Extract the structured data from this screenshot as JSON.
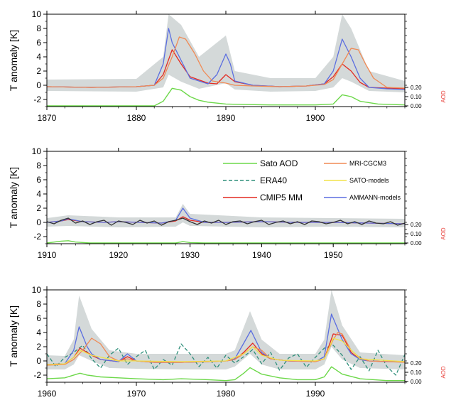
{
  "chart_data": [
    {
      "type": "line",
      "ylabel": "T anomaly [K]",
      "xlim": [
        1870,
        1910
      ],
      "ylim": [
        -3,
        10
      ],
      "xticks": [
        1870,
        1880,
        1890,
        1900
      ],
      "yticks": [
        -2,
        0,
        2,
        4,
        6,
        8,
        10
      ],
      "right_axis": {
        "label": "AOD",
        "ticks": [
          "0.00",
          "0.10",
          "0.20"
        ],
        "color": "#e8403a"
      },
      "legend": null,
      "series": [
        {
          "key": "cmip5",
          "color": "#e32b22",
          "x": [
            1870,
            1875,
            1880,
            1882,
            1883,
            1884,
            1885,
            1886,
            1888,
            1889,
            1890,
            1891,
            1893,
            1896,
            1899,
            1901,
            1902,
            1903,
            1904,
            1905,
            1906,
            1908,
            1910
          ],
          "y": [
            -0.2,
            -0.3,
            -0.2,
            0.0,
            1.5,
            5.0,
            3.0,
            1.2,
            0.3,
            0.2,
            1.5,
            0.5,
            0.0,
            -0.2,
            -0.1,
            0.2,
            1.2,
            3.0,
            2.0,
            0.4,
            -0.3,
            -0.4,
            -0.5
          ]
        },
        {
          "key": "ammann",
          "color": "#5b6ee0",
          "x": [
            1870,
            1875,
            1880,
            1882,
            1883,
            1883.6,
            1884,
            1885,
            1886,
            1888,
            1889,
            1890,
            1890.5,
            1891,
            1893,
            1896,
            1899,
            1901,
            1902,
            1903,
            1904,
            1905,
            1906,
            1908,
            1910
          ],
          "y": [
            -0.2,
            -0.3,
            -0.2,
            0.0,
            3.0,
            8.0,
            6.0,
            3.5,
            1.0,
            0.2,
            1.5,
            4.4,
            3.0,
            0.6,
            0.0,
            -0.2,
            -0.1,
            0.2,
            2.0,
            6.5,
            4.0,
            1.0,
            -0.3,
            -0.5,
            -0.6
          ]
        },
        {
          "key": "mri",
          "color": "#f08a55",
          "x": [
            1870,
            1875,
            1880,
            1882,
            1883,
            1884,
            1884.8,
            1885.5,
            1886.5,
            1887.5,
            1888.5,
            1890,
            1891,
            1893,
            1896,
            1899,
            1901,
            1902,
            1903,
            1904,
            1904.8,
            1905.6,
            1906.5,
            1908,
            1910
          ],
          "y": [
            -0.2,
            -0.3,
            -0.2,
            0.0,
            1.0,
            4.0,
            6.8,
            6.5,
            4.5,
            2.0,
            0.6,
            0.3,
            0.0,
            -0.1,
            -0.2,
            -0.1,
            0.1,
            0.8,
            3.0,
            5.2,
            5.0,
            3.0,
            1.0,
            -0.3,
            -0.4
          ]
        },
        {
          "key": "aod",
          "color": "#6dd84a",
          "x": [
            1870,
            1882,
            1883,
            1884,
            1885,
            1886,
            1887,
            1888,
            1890,
            1892,
            1895,
            1900,
            1902,
            1903,
            1904,
            1905,
            1907,
            1910
          ],
          "y": [
            0.0,
            0.0,
            0.05,
            0.19,
            0.17,
            0.1,
            0.06,
            0.04,
            0.02,
            0.015,
            0.01,
            0.01,
            0.02,
            0.12,
            0.1,
            0.05,
            0.02,
            0.01
          ]
        }
      ],
      "spread": {
        "color": "#c9d0cf",
        "x": [
          1870,
          1880,
          1883,
          1883.6,
          1885,
          1887,
          1890,
          1891,
          1895,
          1900,
          1902,
          1903,
          1904,
          1906,
          1910
        ],
        "upper": [
          0.8,
          0.9,
          4,
          10,
          8.5,
          4,
          7,
          2,
          1.0,
          1.0,
          4,
          10,
          8,
          2,
          0.6
        ],
        "lower": [
          -0.8,
          -0.9,
          -0.3,
          1.5,
          0.5,
          -0.5,
          0.3,
          -0.6,
          -0.9,
          -0.8,
          -0.3,
          1.0,
          0.5,
          -0.8,
          -1.0
        ]
      }
    },
    {
      "type": "line",
      "ylabel": "T anomaly [K]",
      "xlim": [
        1910,
        1960
      ],
      "ylim": [
        -3,
        10
      ],
      "xticks": [
        1910,
        1920,
        1930,
        1940,
        1950
      ],
      "yticks": [
        -2,
        0,
        2,
        4,
        6,
        8,
        10
      ],
      "right_axis": {
        "label": "AOD",
        "ticks": [
          "0.00",
          "0.10",
          "0.20"
        ],
        "color": "#e8403a"
      },
      "legend": {
        "placement": "top-right",
        "entries": [
          {
            "key": "aod",
            "label": "Sato AOD",
            "color": "#6dd84a",
            "dash": false
          },
          {
            "key": "era40",
            "label": "ERA40",
            "color": "#2f8f7a",
            "dash": true
          },
          {
            "key": "cmip5",
            "label": "CMIP5 MM",
            "color": "#e32b22",
            "dash": false
          },
          {
            "key": "mri",
            "label": "MRI-CGCM3",
            "color": "#f08a55",
            "dash": false
          },
          {
            "key": "sato",
            "label": "SATO-models",
            "color": "#f2e34a",
            "dash": false
          },
          {
            "key": "ammann",
            "label": "AMMANN-models",
            "color": "#5b6ee0",
            "dash": false
          }
        ]
      },
      "series": [
        {
          "key": "cmip5",
          "color": "#e32b22",
          "x": [
            1910,
            1912,
            1913,
            1915,
            1918,
            1920,
            1923,
            1926,
            1928,
            1929,
            1930,
            1932,
            1935,
            1940,
            1945,
            1950,
            1955,
            1960
          ],
          "y": [
            0.0,
            0.2,
            0.4,
            0.1,
            0.0,
            0.1,
            0.0,
            -0.1,
            0.2,
            0.8,
            0.3,
            0.0,
            0.0,
            0.1,
            0.0,
            0.0,
            -0.1,
            -0.2
          ]
        },
        {
          "key": "ammann",
          "color": "#5b6ee0",
          "x": [
            1910,
            1912,
            1913,
            1915,
            1918,
            1920,
            1923,
            1926,
            1928,
            1929,
            1930,
            1932,
            1935,
            1940,
            1945,
            1950,
            1955,
            1960
          ],
          "y": [
            0.0,
            0.2,
            0.5,
            0.1,
            0.0,
            0.1,
            0.0,
            -0.1,
            0.3,
            2.0,
            0.6,
            0.0,
            0.0,
            0.1,
            0.0,
            0.0,
            -0.1,
            -0.2
          ]
        },
        {
          "key": "era40",
          "color": "#333333",
          "x": [
            1910,
            1911,
            1912,
            1913,
            1914,
            1915,
            1916,
            1917,
            1918,
            1919,
            1920,
            1921,
            1922,
            1923,
            1924,
            1925,
            1926,
            1927,
            1928,
            1929,
            1930,
            1931,
            1932,
            1933,
            1934,
            1935,
            1936,
            1937,
            1938,
            1939,
            1940,
            1941,
            1942,
            1943,
            1944,
            1945,
            1946,
            1947,
            1948,
            1949,
            1950,
            1951,
            1952,
            1953,
            1954,
            1955,
            1956,
            1957,
            1958,
            1959,
            1960
          ],
          "y": [
            0.1,
            -0.2,
            0.3,
            0.6,
            -0.1,
            0.2,
            -0.3,
            0.1,
            0.3,
            -0.4,
            0.2,
            0.0,
            -0.3,
            0.3,
            -0.1,
            0.2,
            -0.4,
            0.1,
            0.3,
            0.6,
            0.1,
            -0.3,
            0.2,
            -0.1,
            0.3,
            -0.3,
            0.1,
            0.2,
            -0.2,
            0.1,
            0.3,
            -0.3,
            0.0,
            0.2,
            -0.2,
            0.1,
            -0.3,
            0.2,
            0.1,
            -0.2,
            0.0,
            0.3,
            -0.2,
            0.1,
            -0.3,
            0.2,
            -0.1,
            -0.2,
            0.1,
            -0.4,
            -0.1
          ]
        },
        {
          "key": "aod",
          "color": "#6dd84a",
          "x": [
            1910,
            1912,
            1913,
            1914,
            1916,
            1928,
            1929,
            1930,
            1932,
            1960
          ],
          "y": [
            0.0,
            0.02,
            0.025,
            0.01,
            0.0,
            0.0,
            0.015,
            0.005,
            0.0,
            0.0
          ]
        }
      ],
      "spread": {
        "color": "#c9d0cf",
        "x": [
          1910,
          1913,
          1920,
          1928,
          1929,
          1930,
          1940,
          1950,
          1960
        ],
        "upper": [
          0.6,
          1.0,
          0.7,
          0.7,
          2.6,
          1.2,
          0.7,
          0.6,
          0.5
        ],
        "lower": [
          -0.6,
          -0.5,
          -0.7,
          -0.6,
          0.0,
          -0.5,
          -0.7,
          -0.6,
          -0.7
        ]
      }
    },
    {
      "type": "line",
      "ylabel": "T anomaly [K]",
      "xlim": [
        1960,
        2000
      ],
      "ylim": [
        -3,
        10
      ],
      "xticks": [
        1960,
        1970,
        1980,
        1990
      ],
      "yticks": [
        -2,
        0,
        2,
        4,
        6,
        8,
        10
      ],
      "right_axis": {
        "label": "AOD",
        "ticks": [
          "0.00",
          "0.10",
          "0.20"
        ],
        "color": "#e8403a"
      },
      "legend": null,
      "series": [
        {
          "key": "era40",
          "color": "#2f8f7a",
          "dash": true,
          "x": [
            1960,
            1961,
            1962,
            1963,
            1964,
            1965,
            1966,
            1967,
            1968,
            1969,
            1970,
            1971,
            1972,
            1973,
            1974,
            1975,
            1976,
            1977,
            1978,
            1979,
            1980,
            1981,
            1982,
            1983,
            1984,
            1985,
            1986,
            1987,
            1988,
            1989,
            1990,
            1991,
            1992,
            1993,
            1994,
            1995,
            1996,
            1997,
            1998,
            1999,
            2000
          ],
          "y": [
            1.0,
            -0.8,
            0.5,
            1.2,
            2.2,
            0.3,
            -1.0,
            0.8,
            1.8,
            -0.5,
            0.6,
            1.5,
            -1.2,
            0.2,
            -0.6,
            2.4,
            1.0,
            -0.8,
            0.5,
            -1.0,
            0.8,
            -0.3,
            0.6,
            1.6,
            -0.4,
            1.2,
            -1.3,
            0.4,
            1.0,
            -0.9,
            0.5,
            1.8,
            2.2,
            0.8,
            -1.2,
            0.6,
            -1.4,
            1.5,
            -0.8,
            -2.0,
            0.9
          ]
        },
        {
          "key": "cmip5",
          "color": "#e32b22",
          "x": [
            1960,
            1962,
            1963,
            1963.7,
            1964.5,
            1965,
            1966,
            1968,
            1969,
            1970,
            1972,
            1975,
            1978,
            1980,
            1981,
            1982,
            1983,
            1984,
            1985,
            1987,
            1990,
            1991,
            1992,
            1993,
            1994,
            1995,
            1996,
            1998,
            2000
          ],
          "y": [
            -0.5,
            -0.4,
            0.5,
            1.8,
            1.2,
            0.8,
            0.2,
            -0.1,
            0.6,
            0.0,
            -0.2,
            -0.2,
            -0.1,
            0.0,
            0.2,
            1.2,
            2.5,
            1.0,
            0.3,
            0.0,
            -0.1,
            0.3,
            3.8,
            3.6,
            1.2,
            0.2,
            0.0,
            -0.1,
            -0.1
          ]
        },
        {
          "key": "ammann",
          "color": "#5b6ee0",
          "x": [
            1960,
            1962,
            1963,
            1963.6,
            1964.5,
            1965,
            1966,
            1968,
            1969,
            1970,
            1972,
            1975,
            1978,
            1980,
            1981,
            1982,
            1982.8,
            1984,
            1985,
            1987,
            1990,
            1991,
            1991.8,
            1993,
            1994,
            1995,
            1996,
            1998,
            2000
          ],
          "y": [
            -0.5,
            -0.4,
            1.5,
            4.8,
            2.0,
            1.0,
            0.2,
            -0.1,
            1.0,
            0.0,
            -0.2,
            -0.2,
            -0.1,
            0.0,
            0.3,
            2.5,
            4.3,
            1.2,
            0.3,
            0.0,
            -0.1,
            0.6,
            6.6,
            3.0,
            1.0,
            0.2,
            0.0,
            -0.1,
            -0.1
          ]
        },
        {
          "key": "mri",
          "color": "#f08a55",
          "x": [
            1960,
            1962,
            1963,
            1964,
            1965,
            1966,
            1967,
            1968,
            1969,
            1970,
            1972,
            1975,
            1978,
            1980,
            1981,
            1982,
            1983,
            1984,
            1985,
            1987,
            1990,
            1991,
            1992,
            1992.5,
            1993,
            1994,
            1995,
            1996,
            1998,
            2000
          ],
          "y": [
            -0.6,
            -0.5,
            0.2,
            1.5,
            3.2,
            2.4,
            0.6,
            0.0,
            0.3,
            0.0,
            -0.2,
            -0.2,
            -0.1,
            0.0,
            0.2,
            1.0,
            2.0,
            1.5,
            0.3,
            0.0,
            -0.1,
            0.3,
            3.0,
            4.0,
            3.8,
            1.5,
            0.4,
            0.0,
            -0.1,
            -0.2
          ]
        },
        {
          "key": "sato",
          "color": "#f2e34a",
          "x": [
            1960,
            1962,
            1963,
            1963.7,
            1965,
            1968,
            1970,
            1975,
            1980,
            1982,
            1983,
            1984,
            1986,
            1990,
            1991,
            1992,
            1993,
            1995,
            2000
          ],
          "y": [
            -0.5,
            -0.4,
            0.5,
            1.5,
            0.8,
            0.0,
            0.0,
            -0.1,
            0.0,
            1.0,
            2.0,
            0.8,
            0.1,
            0.0,
            0.3,
            3.2,
            2.8,
            0.3,
            -0.1
          ]
        },
        {
          "key": "aod",
          "color": "#6dd84a",
          "x": [
            1960,
            1962,
            1963,
            1963.7,
            1964.5,
            1966,
            1968,
            1970,
            1973,
            1975,
            1978,
            1980,
            1981,
            1982,
            1982.7,
            1984,
            1986,
            1988,
            1990,
            1991,
            1991.8,
            1993,
            1995,
            1998,
            2000
          ],
          "y": [
            0.03,
            0.04,
            0.07,
            0.09,
            0.07,
            0.05,
            0.04,
            0.03,
            0.02,
            0.03,
            0.02,
            0.01,
            0.02,
            0.09,
            0.15,
            0.08,
            0.04,
            0.02,
            0.02,
            0.05,
            0.16,
            0.08,
            0.03,
            0.01,
            0.01
          ]
        }
      ],
      "spread": {
        "color": "#c9d0cf",
        "x": [
          1960,
          1962,
          1963,
          1963.6,
          1965,
          1967,
          1970,
          1975,
          1980,
          1981,
          1982.7,
          1984,
          1986,
          1990,
          1991,
          1991.8,
          1993,
          1995,
          2000
        ],
        "upper": [
          0.8,
          0.7,
          3.0,
          9.2,
          4.5,
          1.5,
          1.0,
          1.0,
          1.0,
          1.5,
          7.0,
          3.0,
          1.0,
          1.0,
          3.0,
          10.0,
          5.0,
          1.2,
          0.8
        ],
        "lower": [
          -1.2,
          -1.2,
          -0.5,
          0.8,
          0.0,
          -1.0,
          -1.1,
          -1.2,
          -1.2,
          -0.8,
          1.0,
          -0.5,
          -1.2,
          -1.2,
          -0.5,
          2.0,
          0.2,
          -1.0,
          -1.2
        ]
      }
    }
  ]
}
